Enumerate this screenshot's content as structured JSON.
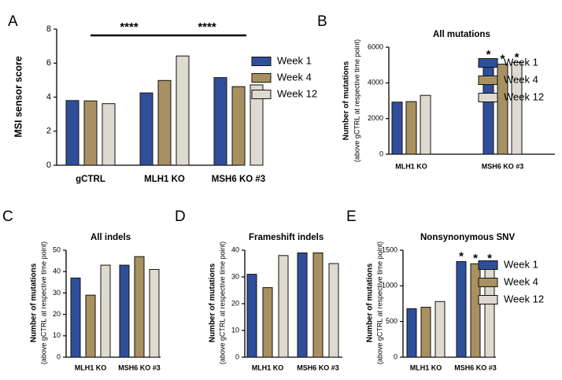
{
  "legend": {
    "entries": [
      "Week 1",
      "Week 4",
      "Week 12"
    ]
  },
  "colors": {
    "Week 1": "#2f4f9b",
    "Week 4": "#a89060",
    "Week 12": "#dedad0",
    "edge": "#111111"
  },
  "chart_data": [
    {
      "panel": "A",
      "type": "bar",
      "title": "",
      "ylabel": "MSI sensor score",
      "categories": [
        "gCTRL",
        "MLH1 KO",
        "MSH6 KO #3"
      ],
      "series": [
        {
          "name": "Week 1",
          "values": [
            3.8,
            4.25,
            5.15
          ]
        },
        {
          "name": "Week 4",
          "values": [
            3.78,
            4.98,
            4.62
          ]
        },
        {
          "name": "Week 12",
          "values": [
            3.62,
            6.42,
            4.72
          ]
        }
      ],
      "ylim": [
        0,
        8
      ],
      "yticks": [
        "0",
        "2",
        "4",
        "6",
        "8"
      ],
      "significance": [
        "****",
        "****"
      ],
      "legend_position": "right"
    },
    {
      "panel": "B",
      "type": "bar",
      "title": "All mutations",
      "ylabel": "Number of mutations",
      "ylabel2": "(above gCTRL at respective time point)",
      "categories": [
        "MLH1 KO",
        "MSH6 KO #3"
      ],
      "series": [
        {
          "name": "Week 1",
          "values": [
            2920,
            5300
          ]
        },
        {
          "name": "Week 4",
          "values": [
            2950,
            5050
          ]
        },
        {
          "name": "Week 12",
          "values": [
            3300,
            5150
          ]
        }
      ],
      "ylim": [
        0,
        6000
      ],
      "yticks": [
        "0",
        "2000",
        "4000",
        "6000"
      ],
      "asterisks": [
        "*",
        "*",
        "*"
      ],
      "legend_position": "right"
    },
    {
      "panel": "C",
      "type": "bar",
      "title": "All indels",
      "ylabel": "Number of mutations",
      "ylabel2": "(above gCTRL at respective time point)",
      "categories": [
        "MLH1 KO",
        "MSH6 KO #3"
      ],
      "series": [
        {
          "name": "Week 1",
          "values": [
            37,
            43
          ]
        },
        {
          "name": "Week 4",
          "values": [
            29,
            47
          ]
        },
        {
          "name": "Week 12",
          "values": [
            43,
            41
          ]
        }
      ],
      "ylim": [
        0,
        50
      ],
      "yticks": [
        "0",
        "10",
        "20",
        "30",
        "40",
        "50"
      ]
    },
    {
      "panel": "D",
      "type": "bar",
      "title": "Frameshift indels",
      "ylabel": "Number of mutations",
      "ylabel2": "(above gCTRL at respective time point)",
      "categories": [
        "MLH1 KO",
        "MSH6 KO #3"
      ],
      "series": [
        {
          "name": "Week 1",
          "values": [
            31,
            39
          ]
        },
        {
          "name": "Week 4",
          "values": [
            26,
            39
          ]
        },
        {
          "name": "Week 12",
          "values": [
            38,
            35
          ]
        }
      ],
      "ylim": [
        0,
        40
      ],
      "yticks": [
        "0",
        "10",
        "20",
        "30",
        "40"
      ]
    },
    {
      "panel": "E",
      "type": "bar",
      "title": "Nonsynonymous SNV",
      "ylabel": "Number of mutations",
      "ylabel2": "(above gCTRL at respective time point)",
      "categories": [
        "MLH1 KO",
        "MSH6 KO #3"
      ],
      "series": [
        {
          "name": "Week 1",
          "values": [
            680,
            1340
          ]
        },
        {
          "name": "Week 4",
          "values": [
            700,
            1310
          ]
        },
        {
          "name": "Week 12",
          "values": [
            780,
            1310
          ]
        }
      ],
      "ylim": [
        0,
        1500
      ],
      "yticks": [
        "0",
        "500",
        "1000",
        "1500"
      ],
      "asterisks": [
        "*",
        "*",
        "*"
      ],
      "legend_position": "right"
    }
  ]
}
